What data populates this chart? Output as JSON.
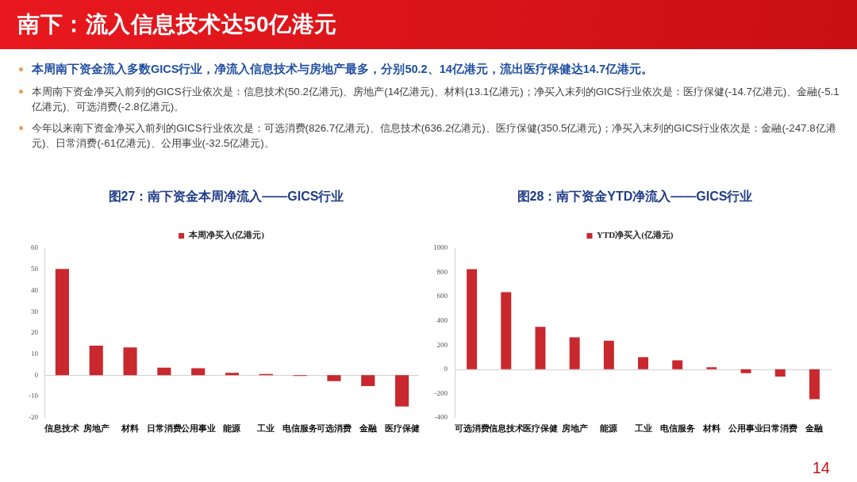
{
  "chart_data": [
    {
      "type": "other",
      "title": "南下：流入信息技术达50亿港元",
      "annotations": [
        "本周南下资金流入多数GICS行业，净流入信息技术与房地产最多，分别50.2、14亿港元，流出医疗保健达14.7亿港元。",
        "本周南下资金净买入前列的GICS行业依次是：信息技术(50.2亿港元)、房地产(14亿港元)、材料(13.1亿港元)；净买入末列的GICS行业依次是：医疗保健(-14.7亿港元)、金融(-5.1亿港元)、可选消费(-2.8亿港元)。",
        "今年以来南下资金净买入前列的GICS行业依次是：可选消费(826.7亿港元)、信息技术(636.2亿港元)、医疗保健(350.5亿港元)；净买入末列的GICS行业依次是：金融(-247.8亿港元)、日常消费(-61亿港元)、公用事业(-32.5亿港元)。",
        "14"
      ]
    },
    {
      "type": "bar",
      "title": "图27：南下资金本周净流入——GICS行业",
      "categories": [
        "信息技术",
        "房地产",
        "材料",
        "日常消费",
        "公用事业",
        "能源",
        "工业",
        "电信服务",
        "可选消费",
        "金融",
        "医疗保健"
      ],
      "series": [
        {
          "name": "本周净买入(亿港元)",
          "color": "#c8282e",
          "values": [
            50.2,
            14,
            13.1,
            3.6,
            3.3,
            1.2,
            0.6,
            -0.3,
            -2.8,
            -5.1,
            -14.7
          ]
        }
      ],
      "ylim": [
        -20,
        60
      ],
      "yticks": [
        -20,
        -10,
        0,
        10,
        20,
        30,
        40,
        50,
        60
      ],
      "legend": "top"
    },
    {
      "type": "bar",
      "title": "图28：南下资金YTD净流入——GICS行业",
      "categories": [
        "可选消费",
        "信息技术",
        "医疗保健",
        "房地产",
        "能源",
        "工业",
        "电信服务",
        "材料",
        "公用事业",
        "日常消费",
        "金融"
      ],
      "series": [
        {
          "name": "YTD净买入(亿港元)",
          "color": "#c8282e",
          "values": [
            826.7,
            636.2,
            350.5,
            264,
            235,
            99,
            74,
            16,
            -32.5,
            -61,
            -247.8
          ]
        }
      ],
      "ylim": [
        -400,
        1000
      ],
      "yticks": [
        -400,
        -200,
        0,
        200,
        400,
        600,
        800,
        1000
      ],
      "legend": "top"
    }
  ]
}
